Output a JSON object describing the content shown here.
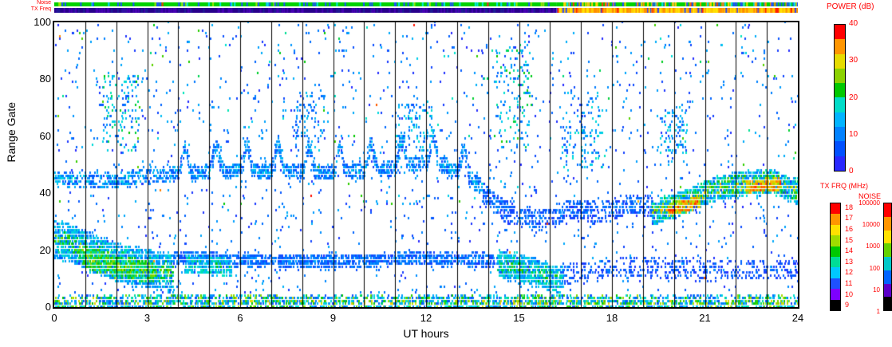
{
  "figure": {
    "background": "#ffffff",
    "accent_text_color": "#ff0000"
  },
  "strips": {
    "noise_label": "Noise",
    "txfreq_label": "TX Freq",
    "noise": {
      "segments": [
        {
          "t": [
            0,
            16.2
          ],
          "base": "#00d200",
          "specks": [
            [
              "#1e50ff",
              0.1
            ],
            [
              "#00e6e6",
              0.05
            ],
            [
              "#ff3200",
              0.012
            ],
            [
              "#a0e600",
              0.05
            ]
          ]
        },
        {
          "t": [
            16.2,
            24
          ],
          "base": "#00d200",
          "specks": [
            [
              "#1e50ff",
              0.2
            ],
            [
              "#ffd200",
              0.15
            ],
            [
              "#ff8c00",
              0.07
            ],
            [
              "#ff3200",
              0.02
            ],
            [
              "#00e6e6",
              0.05
            ]
          ]
        }
      ]
    },
    "txfreq": {
      "segments": [
        {
          "t": [
            0,
            16.2
          ],
          "base": "#28008c",
          "specks": [
            [
              "#4600b4",
              0.25
            ],
            [
              "#1e1e96",
              0.1
            ]
          ]
        },
        {
          "t": [
            16.2,
            24
          ],
          "base": "#ffc800",
          "specks": [
            [
              "#ff8c00",
              0.3
            ],
            [
              "#ffe600",
              0.25
            ],
            [
              "#ff1e00",
              0.05
            ],
            [
              "#2846ff",
              0.05
            ]
          ]
        }
      ]
    }
  },
  "colorbars": {
    "power": {
      "title": "POWER (dB)",
      "labels": [
        "40",
        "30",
        "20",
        "10",
        "0"
      ],
      "colors_top_to_bottom": [
        "#ff0000",
        "#ff9600",
        "#e6dc00",
        "#8cd200",
        "#00c800",
        "#00dcc8",
        "#00b4ff",
        "#0082ff",
        "#0050ff",
        "#2828ff"
      ]
    },
    "txfrq": {
      "title": "TX FRQ (MHz)",
      "labels": [
        "18",
        "17",
        "16",
        "15",
        "14",
        "13",
        "12",
        "11",
        "10",
        "9"
      ],
      "colors_top_to_bottom": [
        "#ff0000",
        "#ff9600",
        "#ffe100",
        "#a0dc00",
        "#00c800",
        "#00dc96",
        "#00c8ff",
        "#1e50ff",
        "#7d00ff",
        "#000000"
      ]
    },
    "noise": {
      "title": "NOISE",
      "labels": [
        "100000",
        "10000",
        "1000",
        "100",
        "10",
        "1"
      ],
      "colors_top_to_bottom": [
        "#ff0000",
        "#ff9600",
        "#ffe100",
        "#64d200",
        "#00c8c8",
        "#0064ff",
        "#5a00c8",
        "#000000"
      ]
    }
  },
  "axes": {
    "x_ticks": [
      0,
      3,
      6,
      9,
      12,
      15,
      18,
      21,
      24
    ],
    "y_ticks": [
      0,
      20,
      40,
      60,
      80,
      100
    ],
    "grid_hours_every": 1
  },
  "chart_data": {
    "type": "scatter",
    "title": "",
    "xlabel": "UT hours",
    "ylabel": "Range Gate",
    "xlim": [
      0,
      24
    ],
    "ylim": [
      0,
      100
    ],
    "grid": "vertical lines every 1 hour",
    "seed": 7,
    "color_scale": {
      "label": "POWER (dB)",
      "range": [
        0,
        40
      ],
      "stops": [
        [
          0,
          "#2828ff"
        ],
        [
          6,
          "#0064ff"
        ],
        [
          11,
          "#009bff"
        ],
        [
          15,
          "#00c8f0"
        ],
        [
          18,
          "#00e6c8"
        ],
        [
          22,
          "#00c800"
        ],
        [
          26,
          "#7dd700"
        ],
        [
          30,
          "#e1e100"
        ],
        [
          34,
          "#ffa000"
        ],
        [
          37,
          "#ff5000"
        ],
        [
          40,
          "#ff0000"
        ]
      ]
    },
    "features": [
      {
        "name": "bottom-meteor-band",
        "type": "band",
        "path": [
          [
            0,
            1.6
          ],
          [
            24,
            1.6
          ]
        ],
        "thick": 4.5,
        "n": 2600,
        "pmin": 3,
        "pmax": 33,
        "edge": 0.2
      },
      {
        "name": "dawn-descending-blob",
        "type": "band",
        "path": [
          [
            0,
            24
          ],
          [
            0.8,
            21
          ],
          [
            1.6,
            17
          ],
          [
            2.6,
            14
          ],
          [
            3.8,
            12
          ]
        ],
        "thick": 13,
        "n": 2000,
        "pmin": 6,
        "pmax": 29,
        "edge": 0.55
      },
      {
        "name": "dawn-blob-core",
        "type": "band",
        "path": [
          [
            0.9,
            18
          ],
          [
            2,
            14
          ],
          [
            3.2,
            12
          ]
        ],
        "thick": 7,
        "n": 650,
        "pmin": 16,
        "pmax": 29,
        "edge": 0.3
      },
      {
        "name": "day-low-band",
        "type": "band",
        "path": [
          [
            3.8,
            17
          ],
          [
            7,
            16
          ],
          [
            10,
            16
          ],
          [
            12,
            17
          ],
          [
            14.2,
            16
          ]
        ],
        "thick": 4.5,
        "n": 1400,
        "pmin": 2,
        "pmax": 13,
        "edge": 0.3
      },
      {
        "name": "day-low-green-patch",
        "type": "band",
        "path": [
          [
            4.2,
            15
          ],
          [
            5.7,
            14
          ]
        ],
        "thick": 6,
        "n": 320,
        "pmin": 9,
        "pmax": 24,
        "edge": 0.4
      },
      {
        "name": "pm-low-green-blob",
        "type": "band",
        "path": [
          [
            14.3,
            15
          ],
          [
            15.2,
            13
          ],
          [
            16.4,
            9
          ]
        ],
        "thick": 9,
        "n": 850,
        "pmin": 8,
        "pmax": 26,
        "edge": 0.5
      },
      {
        "name": "evening-low-band",
        "type": "band",
        "path": [
          [
            16.4,
            11
          ],
          [
            18.5,
            14
          ],
          [
            21,
            13
          ],
          [
            24,
            13
          ]
        ],
        "thick": 7,
        "n": 480,
        "pmin": 1,
        "pmax": 9,
        "edge": 0.3
      },
      {
        "name": "early-mid-band",
        "type": "band",
        "path": [
          [
            0,
            45
          ],
          [
            1.6,
            44
          ],
          [
            3,
            46
          ],
          [
            3.8,
            47
          ]
        ],
        "thick": 5,
        "n": 420,
        "pmin": 3,
        "pmax": 19,
        "edge": 0.3
      },
      {
        "name": "wavy-mid-band",
        "type": "band",
        "path": [
          [
            3.8,
            47
          ],
          [
            6,
            48
          ],
          [
            9,
            47
          ],
          [
            11,
            49
          ],
          [
            12.3,
            51
          ],
          [
            13.2,
            46
          ],
          [
            13.8,
            42
          ]
        ],
        "thick": 5,
        "n": 1550,
        "pmin": 3,
        "pmax": 17,
        "edge": 0.3,
        "wave": {
          "amp": 9,
          "period": 1.0,
          "phase": -0.05
        }
      },
      {
        "name": "pm-mid-band",
        "type": "band",
        "path": [
          [
            13.8,
            40
          ],
          [
            14.6,
            33
          ],
          [
            15.6,
            30
          ],
          [
            16.6,
            34
          ],
          [
            17.6,
            33
          ],
          [
            18.6,
            36
          ],
          [
            19.3,
            35
          ]
        ],
        "thick": 7,
        "n": 650,
        "pmin": 1,
        "pmax": 11,
        "edge": 0.3
      },
      {
        "name": "evening-intense-band",
        "type": "band",
        "path": [
          [
            19.3,
            33
          ],
          [
            20.2,
            36
          ],
          [
            21.2,
            41
          ],
          [
            22.2,
            43
          ],
          [
            23.2,
            44
          ],
          [
            24,
            40
          ]
        ],
        "thick": 8,
        "n": 1700,
        "pmin": 7,
        "pmax": 38,
        "edge": 0.65
      },
      {
        "name": "evening-red-core-1",
        "type": "band",
        "path": [
          [
            19.8,
            34
          ],
          [
            20.8,
            37
          ]
        ],
        "thick": 3.5,
        "n": 280,
        "pmin": 26,
        "pmax": 40,
        "edge": 0.2
      },
      {
        "name": "evening-red-core-2",
        "type": "band",
        "path": [
          [
            22.3,
            42
          ],
          [
            23.4,
            43
          ]
        ],
        "thick": 3.5,
        "n": 260,
        "pmin": 26,
        "pmax": 40,
        "edge": 0.2
      },
      {
        "name": "sparse-speckle",
        "type": "speckle",
        "t": [
          0,
          24
        ],
        "g": [
          4,
          100
        ],
        "n": 1500,
        "pmin": 0,
        "pmax": 13
      },
      {
        "name": "sparse-speckle-color",
        "type": "speckle",
        "t": [
          0,
          24
        ],
        "g": [
          35,
          100
        ],
        "n": 160,
        "pmin": 10,
        "pmax": 25
      },
      {
        "name": "rare-red-singles",
        "type": "speckle",
        "t": [
          0,
          24
        ],
        "g": [
          4,
          100
        ],
        "n": 10,
        "pmin": 33,
        "pmax": 40
      },
      {
        "name": "cluster-dawn-high",
        "type": "speckle",
        "t": [
          1.5,
          2.7
        ],
        "g": [
          55,
          82
        ],
        "n": 130,
        "pmin": 4,
        "pmax": 22
      },
      {
        "name": "cluster-8ut-high",
        "type": "speckle",
        "t": [
          7.7,
          8.7
        ],
        "g": [
          55,
          75
        ],
        "n": 80,
        "pmin": 3,
        "pmax": 16
      },
      {
        "name": "cluster-11ut-high",
        "type": "speckle",
        "t": [
          11,
          12.2
        ],
        "g": [
          55,
          72
        ],
        "n": 100,
        "pmin": 3,
        "pmax": 18
      },
      {
        "name": "cluster-15ut-high",
        "type": "speckle",
        "t": [
          14.2,
          15.4
        ],
        "g": [
          55,
          92
        ],
        "n": 150,
        "pmin": 4,
        "pmax": 22
      },
      {
        "name": "cluster-17ut-high",
        "type": "speckle",
        "t": [
          16.3,
          17.7
        ],
        "g": [
          48,
          75
        ],
        "n": 130,
        "pmin": 3,
        "pmax": 18
      },
      {
        "name": "cluster-20ut-high",
        "type": "speckle",
        "t": [
          19.4,
          20.4
        ],
        "g": [
          50,
          70
        ],
        "n": 90,
        "pmin": 3,
        "pmax": 18
      }
    ]
  }
}
